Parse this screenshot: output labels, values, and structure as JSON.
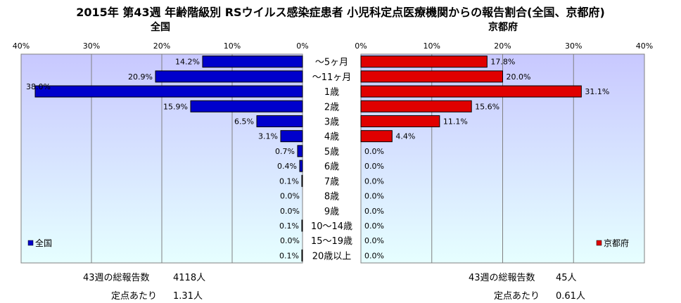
{
  "title": "2015年 第43週 年齢階級別 RSウイルス感染症患者 小児科定点医療機関からの報告割合(全国、京都府)",
  "chart_data": {
    "type": "bar",
    "orientation": "horizontal-mirrored",
    "categories": [
      "～5ヶ月",
      "～11ヶ月",
      "1歳",
      "2歳",
      "3歳",
      "4歳",
      "5歳",
      "6歳",
      "7歳",
      "8歳",
      "9歳",
      "10～14歳",
      "15～19歳",
      "20歳以上"
    ],
    "axis_max": 40,
    "axis_ticks": [
      0,
      10,
      20,
      30,
      40
    ],
    "axis_tick_labels": [
      "0%",
      "10%",
      "20%",
      "30%",
      "40%"
    ],
    "grid": true,
    "series": [
      {
        "name": "全国",
        "side": "left",
        "color": "#0000cc",
        "values": [
          14.2,
          20.9,
          38.0,
          15.9,
          6.5,
          3.1,
          0.7,
          0.4,
          0.1,
          0.0,
          0.0,
          0.1,
          0.0,
          0.1
        ],
        "value_labels": [
          "14.2%",
          "20.9%",
          "38.0%",
          "15.9%",
          "6.5%",
          "3.1%",
          "0.7%",
          "0.4%",
          "0.1%",
          "0.0%",
          "0.0%",
          "0.1%",
          "0.0%",
          "0.1%"
        ],
        "legend_position": "bottom-left"
      },
      {
        "name": "京都府",
        "side": "right",
        "color": "#e00000",
        "values": [
          17.8,
          20.0,
          31.1,
          15.6,
          11.1,
          4.4,
          0.0,
          0.0,
          0.0,
          0.0,
          0.0,
          0.0,
          0.0,
          0.0
        ],
        "value_labels": [
          "17.8%",
          "20.0%",
          "31.1%",
          "15.6%",
          "11.1%",
          "4.4%",
          "0.0%",
          "0.0%",
          "0.0%",
          "0.0%",
          "0.0%",
          "0.0%",
          "0.0%",
          "0.0%"
        ],
        "legend_position": "bottom-right"
      }
    ]
  },
  "panels": {
    "left_title": "全国",
    "right_title": "京都府"
  },
  "footer": {
    "national": {
      "total_label": "43週の総報告数",
      "total_value": "4118人",
      "per_label": "定点あたり",
      "per_value": "1.31人"
    },
    "kyoto": {
      "total_label": "43週の総報告数",
      "total_value": "45人",
      "per_label": "定点あたり",
      "per_value": "0.61人"
    }
  },
  "colors": {
    "plot_bg_top": "#c8c8ff",
    "plot_bg_bottom": "#e6ffff",
    "grid": "#808080"
  }
}
